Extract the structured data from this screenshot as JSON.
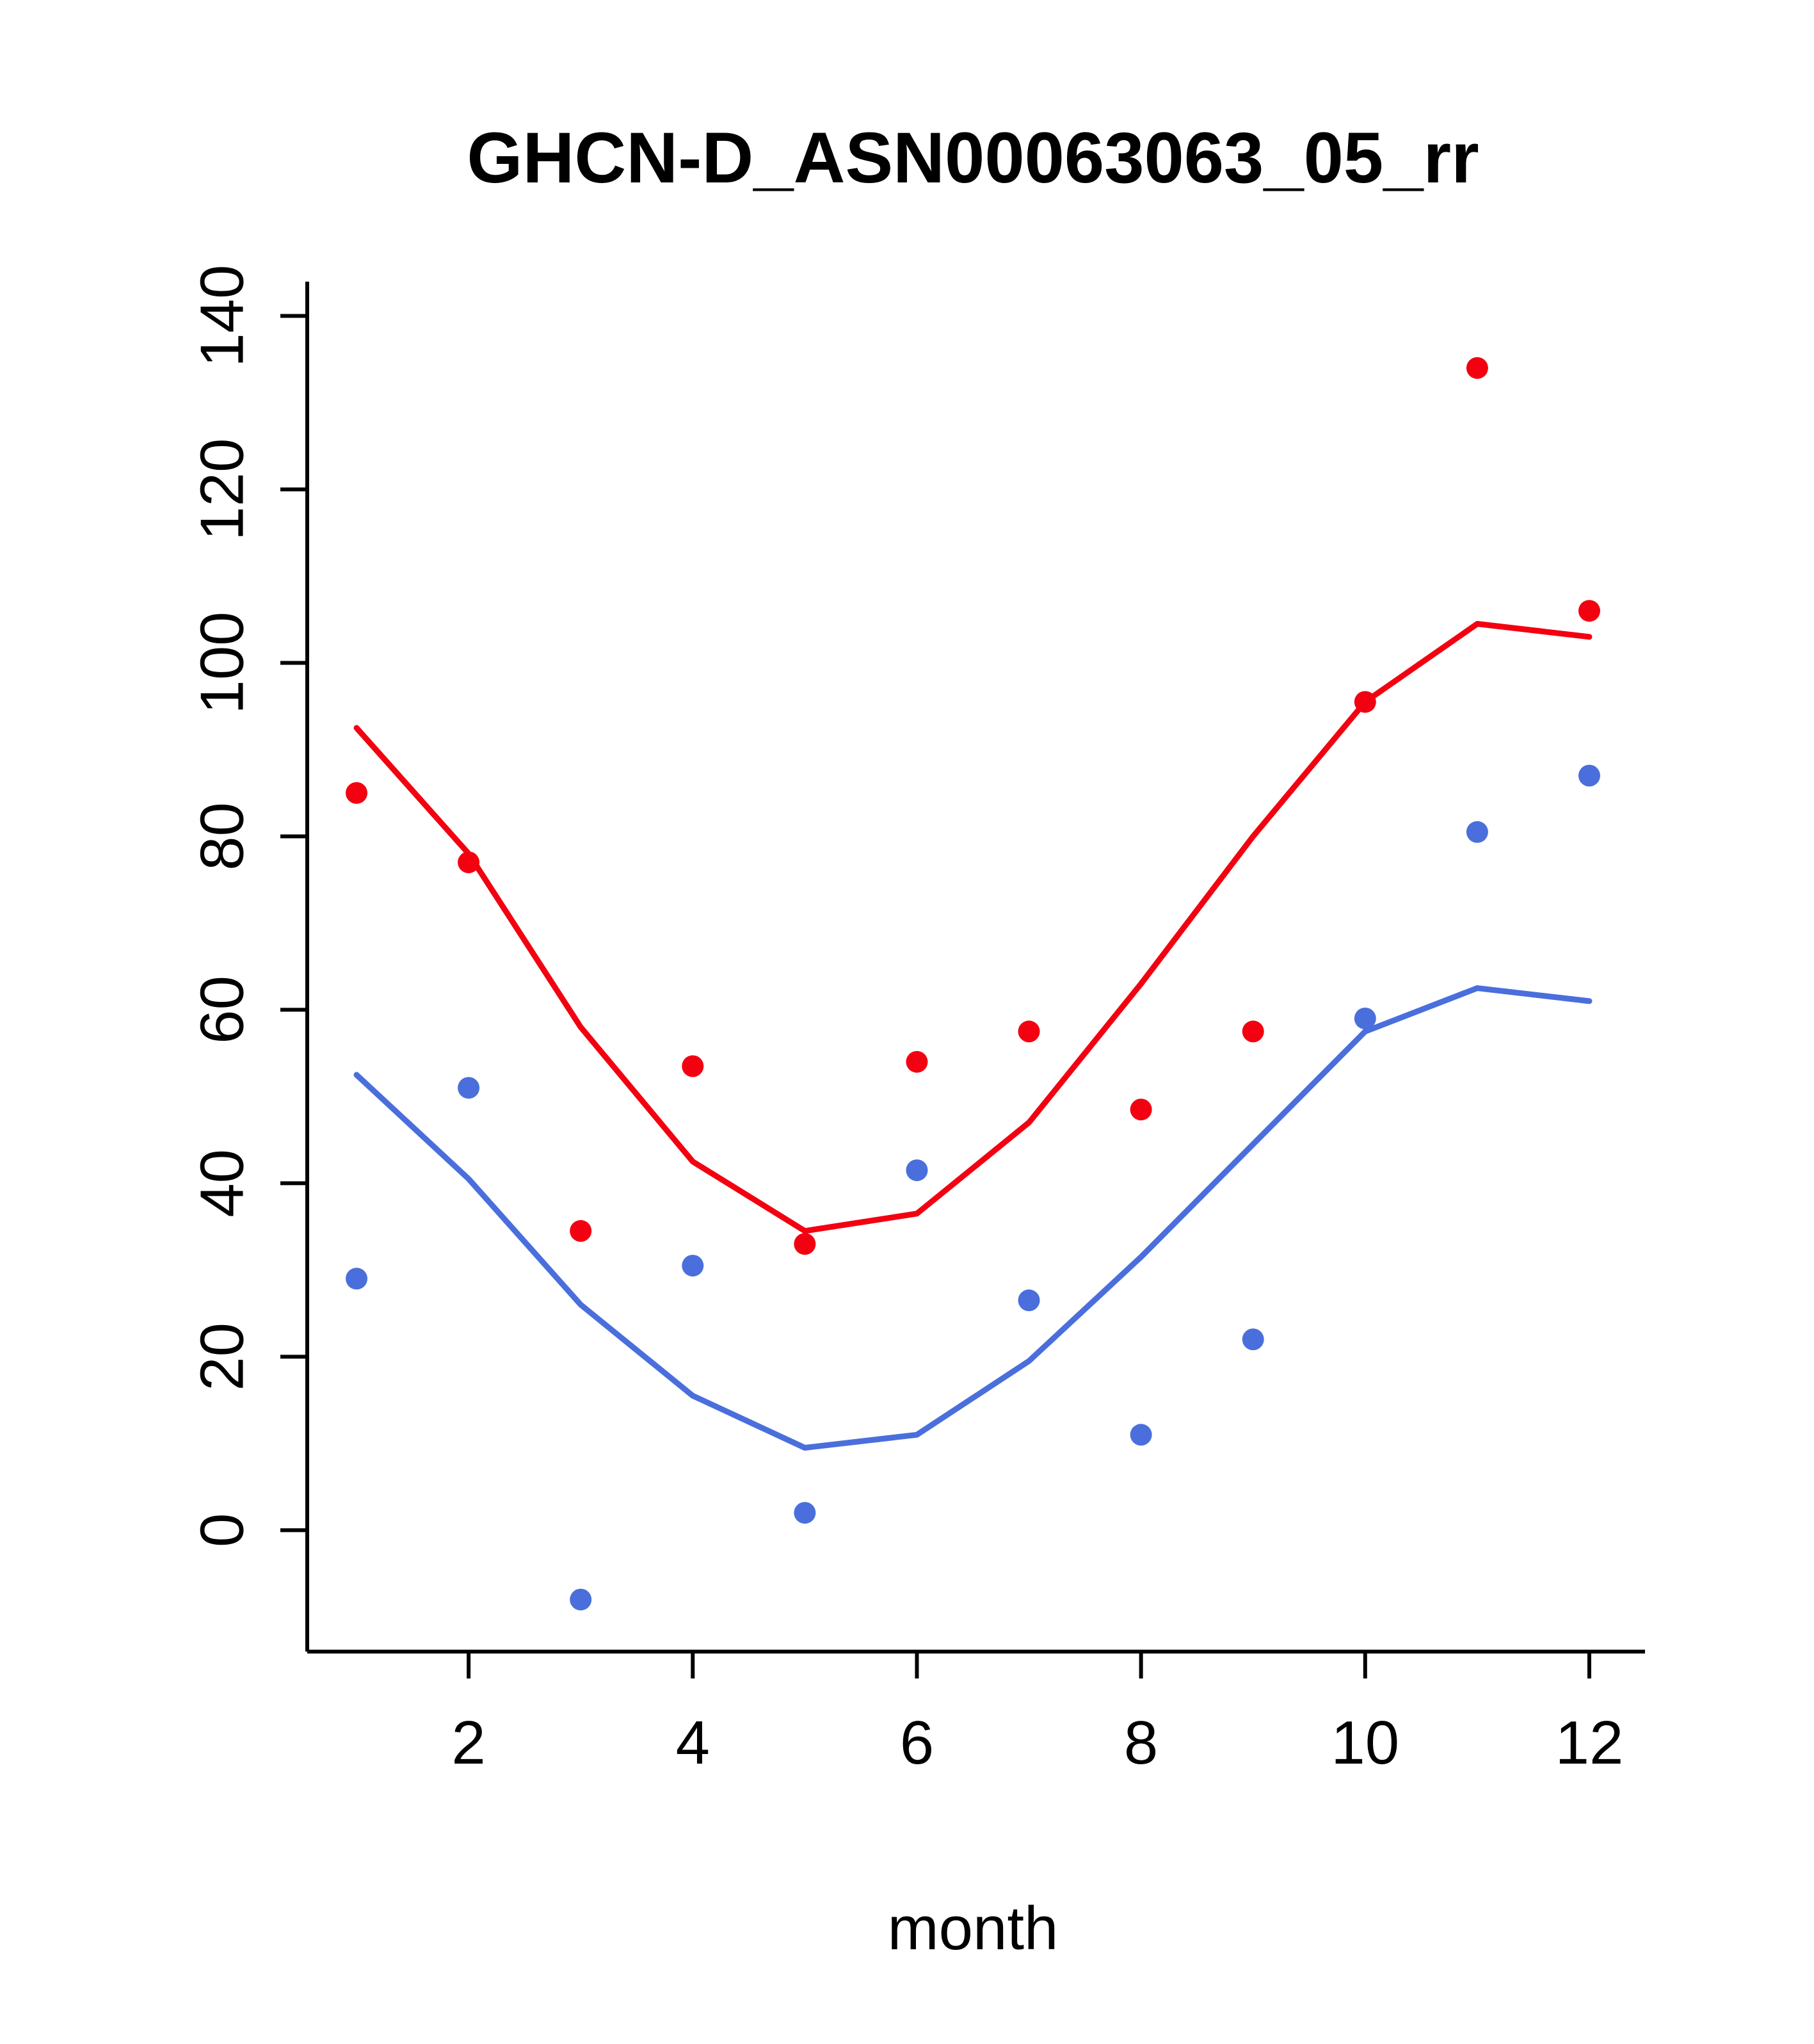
{
  "title": "GHCN-D_ASN00063063_05_rr",
  "xlabel": "month",
  "colors": {
    "red": "#f30011",
    "blue": "#4a6fdc",
    "axis": "#000000",
    "background": "#ffffff"
  },
  "chart_data": {
    "type": "scatter",
    "title": "GHCN-D_ASN00063063_05_rr",
    "xlabel": "month",
    "ylabel": "",
    "x": [
      1,
      2,
      3,
      4,
      5,
      6,
      7,
      8,
      9,
      10,
      11,
      12
    ],
    "xticks": [
      2,
      4,
      6,
      8,
      10,
      12
    ],
    "yticks": [
      0,
      20,
      40,
      60,
      80,
      100,
      120,
      140
    ],
    "xlim": [
      0.56,
      12.44
    ],
    "ylim": [
      -14,
      141
    ],
    "grid": false,
    "legend": "none",
    "series": [
      {
        "name": "red-points",
        "kind": "points",
        "color": "#f30011",
        "values": [
          85,
          77,
          34.5,
          53.5,
          33,
          54,
          57.5,
          48.5,
          57.5,
          95.5,
          134,
          106
        ]
      },
      {
        "name": "blue-points",
        "kind": "points",
        "color": "#4a6fdc",
        "values": [
          29,
          51,
          -8,
          30.5,
          2,
          41.5,
          26.5,
          11,
          22,
          59,
          80.5,
          87
        ]
      },
      {
        "name": "red-smooth-line",
        "kind": "line",
        "color": "#f30011",
        "values": [
          92.5,
          78,
          58,
          42.5,
          34.5,
          36.5,
          47,
          63,
          80,
          95.5,
          104.5,
          103
        ]
      },
      {
        "name": "blue-smooth-line",
        "kind": "line",
        "color": "#4a6fdc",
        "values": [
          52.5,
          40.5,
          26,
          15.5,
          9.5,
          11,
          19.5,
          31.5,
          44.5,
          57.5,
          62.5,
          61
        ]
      }
    ]
  }
}
